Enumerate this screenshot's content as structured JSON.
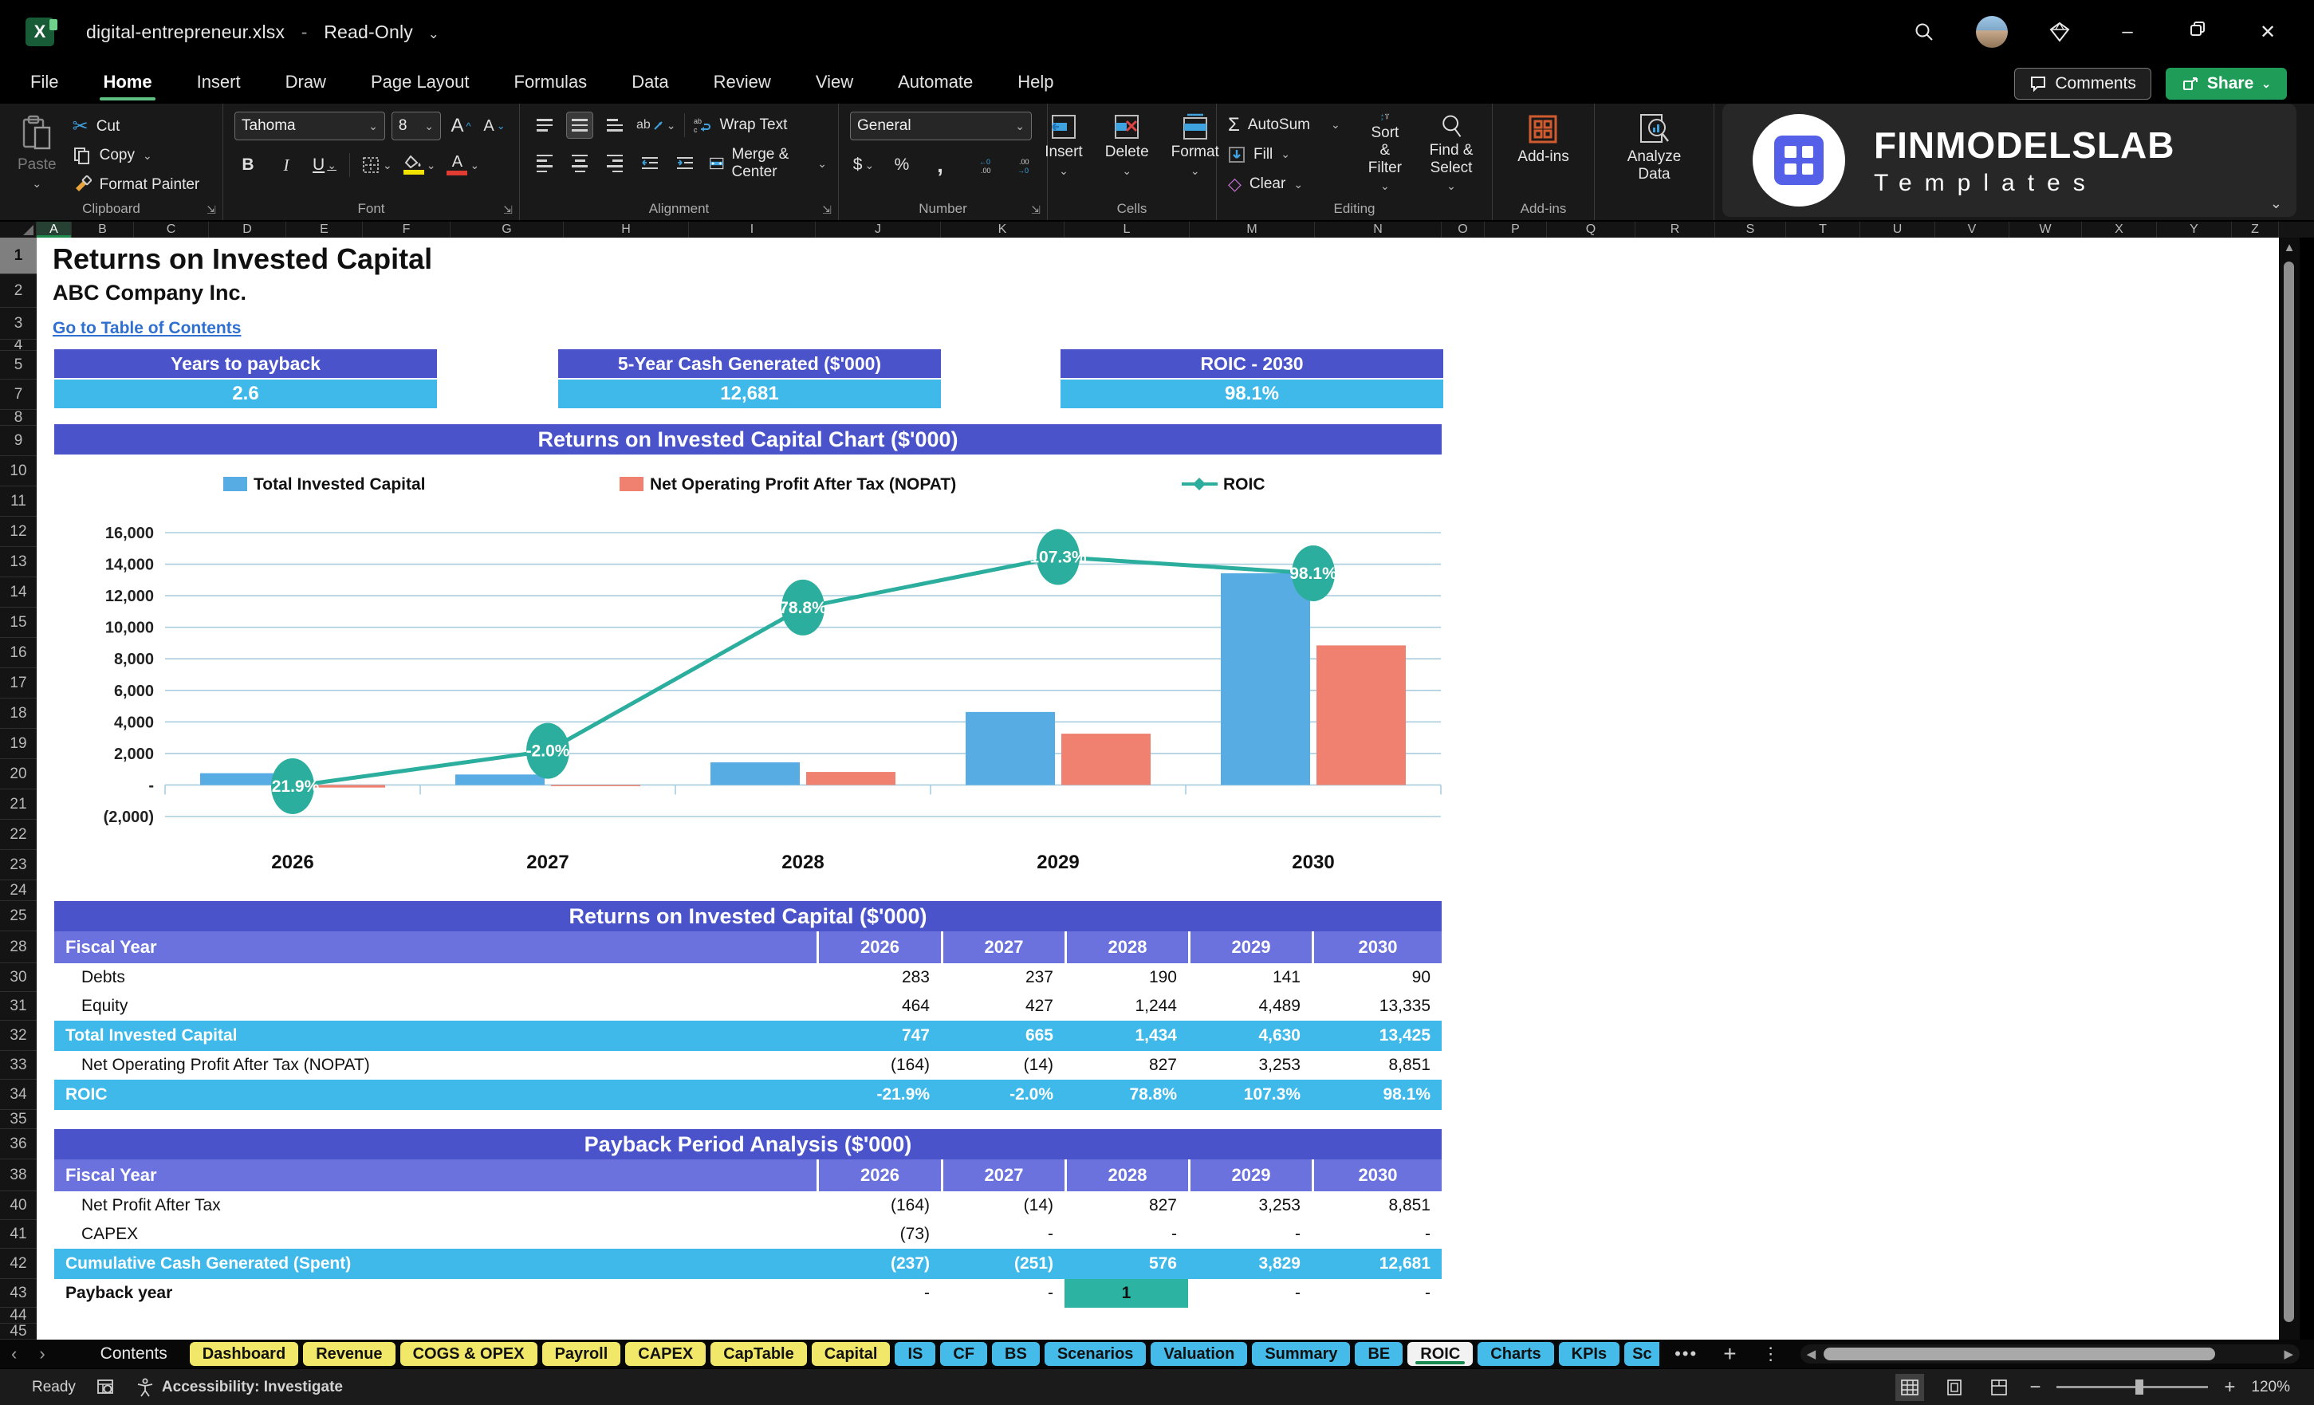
{
  "titlebar": {
    "filename": "digital-entrepreneur.xlsx",
    "separator": "-",
    "mode": "Read-Only"
  },
  "menu": {
    "tabs": [
      "File",
      "Home",
      "Insert",
      "Draw",
      "Page Layout",
      "Formulas",
      "Data",
      "Review",
      "View",
      "Automate",
      "Help"
    ],
    "active_tab": "Home",
    "comments_label": "Comments",
    "share_label": "Share"
  },
  "ribbon": {
    "clipboard": {
      "paste": "Paste",
      "cut": "Cut",
      "copy": "Copy",
      "format_painter": "Format Painter",
      "group_label": "Clipboard"
    },
    "font": {
      "font_name": "Tahoma",
      "font_size": "8",
      "bold": "B",
      "italic": "I",
      "underline": "U",
      "group_label": "Font"
    },
    "alignment": {
      "wrap_text": "Wrap Text",
      "merge_center": "Merge & Center",
      "group_label": "Alignment"
    },
    "number": {
      "format": "General",
      "currency": "$",
      "percent": "%",
      "comma": ",",
      "group_label": "Number"
    },
    "cells": {
      "insert": "Insert",
      "delete": "Delete",
      "format": "Format",
      "group_label": "Cells"
    },
    "editing": {
      "autosum": "AutoSum",
      "fill": "Fill",
      "clear": "Clear",
      "sort_filter": "Sort & Filter",
      "find_select": "Find & Select",
      "group_label": "Editing"
    },
    "addins": {
      "label": "Add-ins",
      "group_label": "Add-ins"
    },
    "analyze": {
      "label": "Analyze Data"
    }
  },
  "brand": {
    "line1": "FINMODELSLAB",
    "line2": "Templates"
  },
  "grid": {
    "columns": [
      "A",
      "B",
      "C",
      "D",
      "E",
      "F",
      "G",
      "H",
      "I",
      "J",
      "K",
      "L",
      "M",
      "N",
      "O",
      "P",
      "Q",
      "R",
      "S",
      "T",
      "U",
      "V",
      "W",
      "X",
      "Y",
      "Z"
    ],
    "rows": [
      1,
      2,
      3,
      4,
      5,
      7,
      8,
      9,
      10,
      11,
      12,
      13,
      14,
      15,
      16,
      17,
      18,
      19,
      20,
      21,
      22,
      23,
      24,
      25,
      28,
      30,
      31,
      32,
      33,
      34,
      35,
      36,
      38,
      40,
      41,
      42,
      43,
      44,
      45
    ]
  },
  "sheet": {
    "title": "Returns on Invested Capital",
    "subtitle": "ABC Company Inc.",
    "link": "Go to Table of Contents",
    "kpis": [
      {
        "label": "Years to payback",
        "value": "2.6"
      },
      {
        "label": "5-Year Cash Generated ($'000)",
        "value": "12,681"
      },
      {
        "label": "ROIC - 2030",
        "value": "98.1%"
      }
    ],
    "chart_banner": "Returns on Invested Capital Chart ($'000)"
  },
  "chart_data": {
    "type": "bar",
    "title": "Returns on Invested Capital Chart ($'000)",
    "categories": [
      "2026",
      "2027",
      "2028",
      "2029",
      "2030"
    ],
    "series": [
      {
        "name": "Total Invested Capital",
        "type": "bar",
        "color": "#57ace4",
        "values": [
          747,
          665,
          1434,
          4630,
          13425
        ]
      },
      {
        "name": "Net Operating Profit After Tax (NOPAT)",
        "type": "bar",
        "color": "#f08070",
        "values": [
          -164,
          -14,
          827,
          3253,
          8851
        ]
      },
      {
        "name": "ROIC",
        "type": "line",
        "color": "#2cae9e",
        "axis": "secondary",
        "values": [
          -21.9,
          -2.0,
          78.8,
          107.3,
          98.1
        ],
        "point_labels": [
          "-21.9%",
          "-2.0%",
          "78.8%",
          "107.3%",
          "98.1%"
        ]
      }
    ],
    "ylim": [
      -2000,
      16000
    ],
    "ytick_step": 2000,
    "ytick_labels": [
      "(2,000)",
      "-",
      "2,000",
      "4,000",
      "6,000",
      "8,000",
      "10,000",
      "12,000",
      "14,000",
      "16,000"
    ],
    "y2lim": [
      -39,
      121
    ],
    "grid": true,
    "legend_position": "top",
    "gridline_color": "#a9cede"
  },
  "tables": [
    {
      "title": "Returns on Invested Capital ($'000)",
      "header_label": "Fiscal Year",
      "years": [
        "2026",
        "2027",
        "2028",
        "2029",
        "2030"
      ],
      "rows": [
        {
          "label": "Debts",
          "style": "plain",
          "values": [
            "283",
            "237",
            "190",
            "141",
            "90"
          ]
        },
        {
          "label": "Equity",
          "style": "plain",
          "values": [
            "464",
            "427",
            "1,244",
            "4,489",
            "13,335"
          ]
        },
        {
          "label": "Total Invested Capital",
          "style": "highlight",
          "values": [
            "747",
            "665",
            "1,434",
            "4,630",
            "13,425"
          ]
        },
        {
          "label": "Net Operating Profit After Tax (NOPAT)",
          "style": "plain",
          "values": [
            "(164)",
            "(14)",
            "827",
            "3,253",
            "8,851"
          ]
        },
        {
          "label": "ROIC",
          "style": "highlight",
          "values": [
            "-21.9%",
            "-2.0%",
            "78.8%",
            "107.3%",
            "98.1%"
          ]
        }
      ]
    },
    {
      "title": "Payback Period Analysis ($'000)",
      "header_label": "Fiscal Year",
      "years": [
        "2026",
        "2027",
        "2028",
        "2029",
        "2030"
      ],
      "rows": [
        {
          "label": "Net Profit After Tax",
          "style": "plain",
          "values": [
            "(164)",
            "(14)",
            "827",
            "3,253",
            "8,851"
          ]
        },
        {
          "label": "CAPEX",
          "style": "plain",
          "values": [
            "(73)",
            "-",
            "-",
            "-",
            "-"
          ]
        },
        {
          "label": "Cumulative Cash Generated (Spent)",
          "style": "highlight",
          "values": [
            "(237)",
            "(251)",
            "576",
            "3,829",
            "12,681"
          ]
        },
        {
          "label": "Payback year",
          "style": "payback",
          "values": [
            "-",
            "-",
            "1",
            "-",
            "-"
          ],
          "teal_index": 2
        }
      ]
    }
  ],
  "sheet_tabs": [
    {
      "label": "Contents",
      "type": "plain"
    },
    {
      "label": "Dashboard",
      "type": "yellow"
    },
    {
      "label": "Revenue",
      "type": "yellow"
    },
    {
      "label": "COGS & OPEX",
      "type": "yellow"
    },
    {
      "label": "Payroll",
      "type": "yellow"
    },
    {
      "label": "CAPEX",
      "type": "yellow"
    },
    {
      "label": "CapTable",
      "type": "yellow"
    },
    {
      "label": "Capital",
      "type": "yellow"
    },
    {
      "label": "IS",
      "type": "blue"
    },
    {
      "label": "CF",
      "type": "blue"
    },
    {
      "label": "BS",
      "type": "blue"
    },
    {
      "label": "Scenarios",
      "type": "blue"
    },
    {
      "label": "Valuation",
      "type": "blue"
    },
    {
      "label": "Summary",
      "type": "blue"
    },
    {
      "label": "BE",
      "type": "blue"
    },
    {
      "label": "ROIC",
      "type": "active"
    },
    {
      "label": "Charts",
      "type": "blue"
    },
    {
      "label": "KPIs",
      "type": "blue"
    },
    {
      "label": "Sc",
      "type": "blue",
      "truncated": true
    }
  ],
  "statusbar": {
    "ready": "Ready",
    "accessibility": "Accessibility: Investigate",
    "zoom": "120%"
  }
}
